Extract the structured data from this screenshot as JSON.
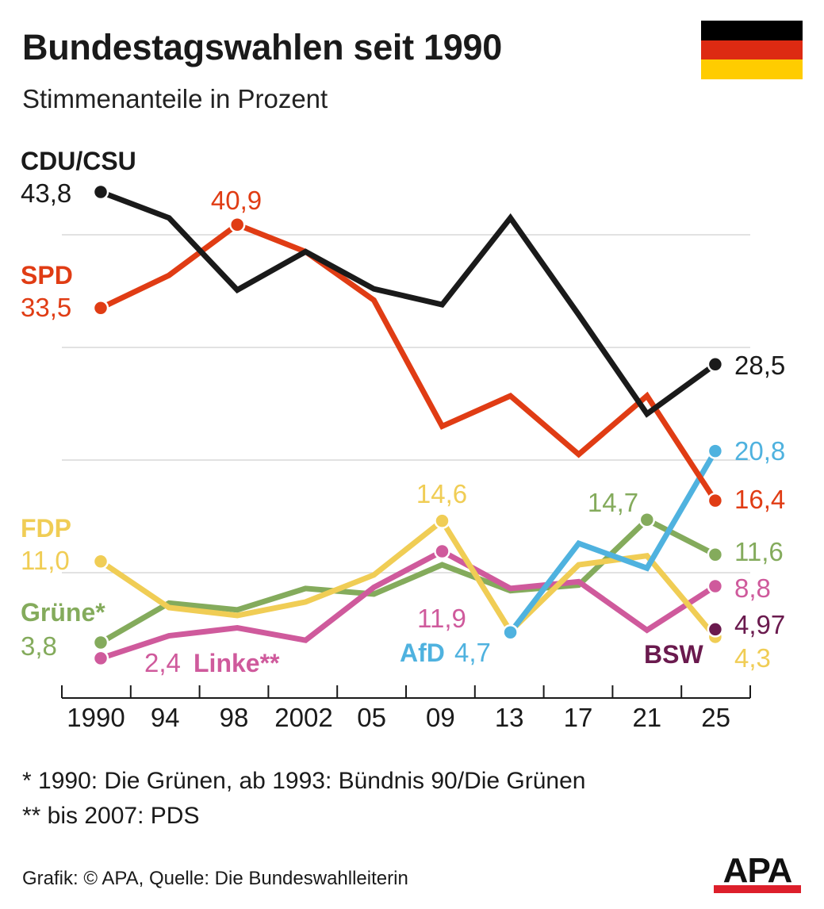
{
  "header": {
    "title": "Bundestagswahlen seit 1990",
    "subtitle": "Stimmenanteile in Prozent"
  },
  "flag": {
    "colors": [
      "#000000",
      "#dd2a12",
      "#ffcc00"
    ]
  },
  "chart_data": {
    "type": "line",
    "title": "Bundestagswahlen seit 1990",
    "subtitle": "Stimmenanteile in Prozent",
    "categories": [
      "1990",
      "94",
      "98",
      "2002",
      "05",
      "09",
      "13",
      "17",
      "21",
      "25"
    ],
    "x_values": [
      1990,
      1994,
      1998,
      2002,
      2005,
      2009,
      2013,
      2017,
      2021,
      2025
    ],
    "ylim": [
      0,
      46
    ],
    "grid": true,
    "series": [
      {
        "name": "CDU/CSU",
        "color": "#1a1a1a",
        "values": [
          43.8,
          41.5,
          35.1,
          38.5,
          35.2,
          33.8,
          41.5,
          32.9,
          24.1,
          28.5
        ],
        "labels": {
          "start": "43,8",
          "end": "28,5"
        }
      },
      {
        "name": "SPD",
        "color": "#e03c14",
        "values": [
          33.5,
          36.4,
          40.9,
          38.5,
          34.2,
          23.0,
          25.7,
          20.5,
          25.7,
          16.4
        ],
        "labels": {
          "start": "33,5",
          "peak": "40,9",
          "end": "16,4"
        }
      },
      {
        "name": "FDP",
        "color": "#f0cd55",
        "values": [
          11.0,
          6.9,
          6.2,
          7.4,
          9.8,
          14.6,
          4.8,
          10.7,
          11.5,
          4.3
        ],
        "labels": {
          "start": "11,0",
          "peak": "14,6",
          "end": "4,3"
        }
      },
      {
        "name": "Grüne*",
        "color": "#84ab5c",
        "values": [
          3.8,
          7.3,
          6.7,
          8.6,
          8.1,
          10.7,
          8.4,
          8.9,
          14.7,
          11.6
        ],
        "labels": {
          "start": "3,8",
          "peak": "14,7",
          "end": "11,6"
        }
      },
      {
        "name": "Linke**",
        "color": "#cf5a9c",
        "values": [
          2.4,
          4.4,
          5.1,
          4.0,
          8.7,
          11.9,
          8.6,
          9.2,
          4.9,
          8.8
        ],
        "labels": {
          "start": "2,4",
          "peak": "11,9",
          "end": "8,8"
        }
      },
      {
        "name": "AfD",
        "color": "#4fb2df",
        "values": [
          null,
          null,
          null,
          null,
          null,
          null,
          4.7,
          12.6,
          10.4,
          20.8
        ],
        "labels": {
          "start": "4,7",
          "end": "20,8"
        }
      },
      {
        "name": "BSW",
        "color": "#6a1a4e",
        "values": [
          null,
          null,
          null,
          null,
          null,
          null,
          null,
          null,
          null,
          4.97
        ],
        "labels": {
          "end": "4,97"
        }
      }
    ]
  },
  "footnotes": [
    "*  1990: Die Grünen, ab 1993: Bündnis 90/Die Grünen",
    "** bis 2007: PDS"
  ],
  "source": "Grafik: © APA, Quelle: Die Bundeswahlleiterin",
  "logo": {
    "text": "APA",
    "color": "#111111",
    "accent": "#dd1f2b"
  }
}
